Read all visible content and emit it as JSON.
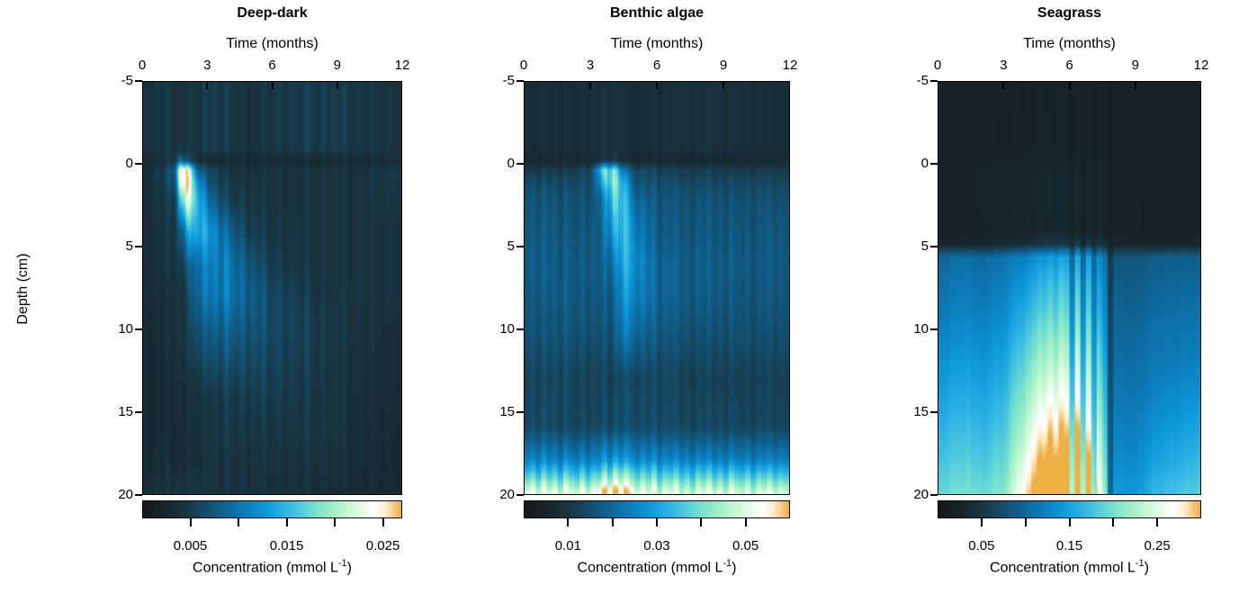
{
  "figure": {
    "ylabel": "Depth (cm)"
  },
  "colormap": [
    [
      0.0,
      "#15181b"
    ],
    [
      0.08,
      "#17242a"
    ],
    [
      0.17,
      "#183744"
    ],
    [
      0.25,
      "#135070"
    ],
    [
      0.33,
      "#0e689b"
    ],
    [
      0.4,
      "#0c7fbd"
    ],
    [
      0.47,
      "#0d97d9"
    ],
    [
      0.53,
      "#25ade2"
    ],
    [
      0.58,
      "#3fc0e2"
    ],
    [
      0.65,
      "#6cdcd2"
    ],
    [
      0.72,
      "#96edc6"
    ],
    [
      0.8,
      "#c8f8d4"
    ],
    [
      0.87,
      "#f2fdf0"
    ],
    [
      0.9,
      "#ffffff"
    ],
    [
      0.94,
      "#ffeccf"
    ],
    [
      1.0,
      "#edb045"
    ]
  ],
  "chart_data": [
    {
      "type": "heatmap",
      "title": "Deep-dark",
      "xlabel": "Time (months)",
      "xlim": [
        0,
        12
      ],
      "ylim": [
        -5,
        20
      ],
      "x_ticks": [
        0,
        3,
        6,
        9,
        12
      ],
      "y_ticks": [
        -5,
        0,
        5,
        10,
        15,
        20
      ],
      "colorbar": {
        "range": [
          0,
          0.027
        ],
        "tick_values": [
          0.005,
          0.01,
          0.015,
          0.02,
          0.025
        ],
        "tick_labels": [
          "0.005",
          "",
          "0.015",
          "",
          "0.025"
        ],
        "label_main": "Concentration (mmol L",
        "label_sup": "-1",
        "label_close": ")"
      },
      "times": [
        0,
        1,
        1.5,
        1.75,
        2,
        2.5,
        3,
        4,
        5,
        6,
        8,
        10,
        12
      ],
      "depths": [
        -5,
        -1,
        -0.3,
        0.3,
        1,
        2,
        4,
        6,
        8,
        10,
        14,
        18,
        20
      ],
      "values": [
        [
          0.004,
          0.0045,
          0.004,
          0.004,
          0.004,
          0.0045,
          0.005,
          0.0045,
          0.004,
          0.0045,
          0.005,
          0.0045,
          0.004
        ],
        [
          0.004,
          0.0045,
          0.004,
          0.004,
          0.004,
          0.0045,
          0.005,
          0.0045,
          0.004,
          0.0045,
          0.005,
          0.0045,
          0.004
        ],
        [
          0.003,
          0.0035,
          0.005,
          0.009,
          0.006,
          0.0035,
          0.003,
          0.003,
          0.003,
          0.003,
          0.003,
          0.003,
          0.0035
        ],
        [
          0.0035,
          0.005,
          0.009,
          0.027,
          0.024,
          0.009,
          0.006,
          0.004,
          0.004,
          0.004,
          0.004,
          0.004,
          0.005
        ],
        [
          0.0035,
          0.005,
          0.008,
          0.026,
          0.025,
          0.013,
          0.007,
          0.0045,
          0.004,
          0.004,
          0.004,
          0.004,
          0.005
        ],
        [
          0.0035,
          0.0045,
          0.006,
          0.018,
          0.022,
          0.016,
          0.009,
          0.005,
          0.0045,
          0.004,
          0.004,
          0.004,
          0.0045
        ],
        [
          0.0035,
          0.004,
          0.005,
          0.008,
          0.012,
          0.015,
          0.013,
          0.008,
          0.005,
          0.0045,
          0.004,
          0.004,
          0.004
        ],
        [
          0.0035,
          0.004,
          0.0045,
          0.005,
          0.007,
          0.01,
          0.011,
          0.01,
          0.007,
          0.005,
          0.004,
          0.004,
          0.004
        ],
        [
          0.0035,
          0.0035,
          0.004,
          0.004,
          0.005,
          0.009,
          0.01,
          0.01,
          0.008,
          0.006,
          0.0045,
          0.004,
          0.004
        ],
        [
          0.003,
          0.0035,
          0.004,
          0.004,
          0.0045,
          0.007,
          0.008,
          0.008,
          0.007,
          0.006,
          0.005,
          0.004,
          0.0035
        ],
        [
          0.003,
          0.003,
          0.0035,
          0.0035,
          0.0035,
          0.004,
          0.0045,
          0.005,
          0.005,
          0.005,
          0.0045,
          0.0035,
          0.0035
        ],
        [
          0.003,
          0.0035,
          0.003,
          0.003,
          0.0035,
          0.0035,
          0.004,
          0.004,
          0.004,
          0.004,
          0.004,
          0.0035,
          0.003
        ],
        [
          0.0035,
          0.004,
          0.0045,
          0.004,
          0.004,
          0.0045,
          0.004,
          0.004,
          0.004,
          0.0035,
          0.0035,
          0.003,
          0.003
        ]
      ],
      "streaks": [
        1,
        0.92,
        1.12,
        0.96,
        1.18,
        0.9,
        1.08,
        0.95,
        1.15,
        1,
        0.92,
        1.1,
        0.96,
        1.06,
        0.9,
        1.18,
        1,
        0.94,
        1.12,
        0.9,
        1.06,
        0.98,
        1.16,
        0.92,
        1,
        1.1,
        0.9,
        1.06,
        1,
        0.94,
        1.2,
        0.98,
        0.9,
        1.12,
        0.95,
        1.06,
        1,
        1.15,
        0.9,
        1.02,
        1.06,
        0.94,
        1.12,
        1,
        0.9,
        1.05,
        0.98,
        0.94
      ]
    },
    {
      "type": "heatmap",
      "title": "Benthic algae",
      "xlabel": "Time (months)",
      "xlim": [
        0,
        12
      ],
      "ylim": [
        -5,
        20
      ],
      "x_ticks": [
        0,
        3,
        6,
        9,
        12
      ],
      "y_ticks": [
        -5,
        0,
        5,
        10,
        15,
        20
      ],
      "colorbar": {
        "range": [
          0,
          0.06
        ],
        "tick_values": [
          0.01,
          0.02,
          0.03,
          0.04,
          0.05
        ],
        "tick_labels": [
          "0.01",
          "",
          "0.03",
          "",
          "0.05"
        ],
        "label_main": "Concentration (mmol L",
        "label_sup": "-1",
        "label_close": ")"
      },
      "times": [
        0,
        1,
        2,
        3,
        3.5,
        4,
        4.5,
        5,
        6,
        8,
        10,
        12
      ],
      "depths": [
        -5,
        -1,
        -0.3,
        0.3,
        1,
        2,
        4,
        6,
        8,
        10,
        13,
        16,
        18,
        19,
        20
      ],
      "values": [
        [
          0.007,
          0.008,
          0.0075,
          0.008,
          0.008,
          0.0085,
          0.008,
          0.0075,
          0.008,
          0.0085,
          0.008,
          0.0075
        ],
        [
          0.007,
          0.008,
          0.0075,
          0.008,
          0.008,
          0.0085,
          0.008,
          0.0075,
          0.008,
          0.0085,
          0.008,
          0.0075
        ],
        [
          0.006,
          0.006,
          0.006,
          0.0065,
          0.009,
          0.01,
          0.007,
          0.006,
          0.006,
          0.006,
          0.006,
          0.006
        ],
        [
          0.01,
          0.011,
          0.011,
          0.013,
          0.034,
          0.042,
          0.022,
          0.014,
          0.012,
          0.011,
          0.011,
          0.011
        ],
        [
          0.013,
          0.014,
          0.013,
          0.014,
          0.028,
          0.044,
          0.03,
          0.016,
          0.014,
          0.013,
          0.013,
          0.013
        ],
        [
          0.015,
          0.016,
          0.015,
          0.015,
          0.02,
          0.038,
          0.034,
          0.02,
          0.016,
          0.015,
          0.015,
          0.015
        ],
        [
          0.016,
          0.017,
          0.016,
          0.016,
          0.018,
          0.03,
          0.034,
          0.025,
          0.017,
          0.016,
          0.016,
          0.016
        ],
        [
          0.017,
          0.018,
          0.017,
          0.017,
          0.017,
          0.022,
          0.032,
          0.027,
          0.019,
          0.017,
          0.017,
          0.017
        ],
        [
          0.016,
          0.017,
          0.017,
          0.016,
          0.016,
          0.018,
          0.028,
          0.025,
          0.019,
          0.017,
          0.016,
          0.016
        ],
        [
          0.015,
          0.016,
          0.016,
          0.015,
          0.015,
          0.016,
          0.024,
          0.021,
          0.017,
          0.015,
          0.015,
          0.015
        ],
        [
          0.012,
          0.013,
          0.013,
          0.012,
          0.012,
          0.012,
          0.014,
          0.013,
          0.013,
          0.012,
          0.012,
          0.012
        ],
        [
          0.013,
          0.014,
          0.013,
          0.013,
          0.013,
          0.014,
          0.015,
          0.014,
          0.014,
          0.013,
          0.013,
          0.013
        ],
        [
          0.024,
          0.025,
          0.024,
          0.024,
          0.025,
          0.028,
          0.028,
          0.026,
          0.025,
          0.024,
          0.024,
          0.024
        ],
        [
          0.036,
          0.037,
          0.036,
          0.036,
          0.038,
          0.044,
          0.043,
          0.039,
          0.037,
          0.036,
          0.036,
          0.036
        ],
        [
          0.05,
          0.051,
          0.05,
          0.05,
          0.054,
          0.06,
          0.058,
          0.052,
          0.05,
          0.049,
          0.049,
          0.049
        ]
      ],
      "streaks": [
        1,
        1.08,
        0.92,
        1.1,
        0.95,
        1.05,
        0.9,
        1.12,
        1,
        0.94,
        1.1,
        0.92,
        1.05,
        1,
        1.15,
        0.9,
        1.08,
        0.95,
        1.1,
        1,
        0.92,
        1.06,
        0.96,
        1.12,
        0.9,
        1.05,
        1,
        1.1,
        0.94,
        1.02,
        0.9,
        1.08,
        1,
        1.12,
        0.95,
        1.05,
        0.92,
        1.1,
        1,
        0.96,
        1.06,
        0.9,
        1.04,
        1,
        1.08,
        0.95,
        1.02,
        0.98
      ]
    },
    {
      "type": "heatmap",
      "title": "Seagrass",
      "xlabel": "Time (months)",
      "xlim": [
        0,
        12
      ],
      "ylim": [
        -5,
        20
      ],
      "x_ticks": [
        0,
        3,
        6,
        9,
        12
      ],
      "y_ticks": [
        -5,
        0,
        5,
        10,
        15,
        20
      ],
      "colorbar": {
        "range": [
          0,
          0.3
        ],
        "tick_values": [
          0.05,
          0.1,
          0.15,
          0.2,
          0.25
        ],
        "tick_labels": [
          "0.05",
          "",
          "0.15",
          "",
          "0.25"
        ],
        "label_main": "Concentration (mmol L",
        "label_sup": "-1",
        "label_close": ")"
      },
      "times": [
        0,
        1,
        2,
        3,
        3.5,
        4,
        5,
        6,
        7,
        7.5,
        8,
        9,
        10,
        12
      ],
      "depths": [
        -5,
        -1,
        0.5,
        2,
        4,
        4.8,
        5.6,
        7,
        9,
        12,
        15,
        18,
        20
      ],
      "values": [
        [
          0.02,
          0.02,
          0.02,
          0.02,
          0.02,
          0.02,
          0.02,
          0.02,
          0.02,
          0.02,
          0.02,
          0.02,
          0.02,
          0.02
        ],
        [
          0.02,
          0.02,
          0.021,
          0.021,
          0.021,
          0.021,
          0.021,
          0.021,
          0.021,
          0.02,
          0.02,
          0.02,
          0.02,
          0.02
        ],
        [
          0.02,
          0.02,
          0.024,
          0.026,
          0.026,
          0.026,
          0.025,
          0.026,
          0.025,
          0.022,
          0.022,
          0.021,
          0.02,
          0.02
        ],
        [
          0.02,
          0.02,
          0.024,
          0.026,
          0.026,
          0.026,
          0.025,
          0.026,
          0.025,
          0.022,
          0.022,
          0.021,
          0.02,
          0.02
        ],
        [
          0.021,
          0.021,
          0.022,
          0.024,
          0.024,
          0.024,
          0.024,
          0.024,
          0.024,
          0.022,
          0.021,
          0.021,
          0.021,
          0.021
        ],
        [
          0.028,
          0.028,
          0.028,
          0.032,
          0.036,
          0.038,
          0.042,
          0.045,
          0.045,
          0.038,
          0.03,
          0.028,
          0.028,
          0.028
        ],
        [
          0.095,
          0.105,
          0.098,
          0.108,
          0.115,
          0.118,
          0.125,
          0.128,
          0.125,
          0.105,
          0.082,
          0.08,
          0.088,
          0.09
        ],
        [
          0.105,
          0.115,
          0.108,
          0.118,
          0.128,
          0.135,
          0.145,
          0.148,
          0.14,
          0.115,
          0.088,
          0.086,
          0.095,
          0.098
        ],
        [
          0.115,
          0.125,
          0.118,
          0.13,
          0.145,
          0.155,
          0.165,
          0.168,
          0.158,
          0.128,
          0.095,
          0.093,
          0.103,
          0.108
        ],
        [
          0.135,
          0.145,
          0.138,
          0.152,
          0.17,
          0.185,
          0.2,
          0.205,
          0.19,
          0.15,
          0.105,
          0.103,
          0.115,
          0.122
        ],
        [
          0.155,
          0.165,
          0.158,
          0.172,
          0.195,
          0.215,
          0.235,
          0.24,
          0.22,
          0.172,
          0.118,
          0.115,
          0.13,
          0.145
        ],
        [
          0.175,
          0.185,
          0.178,
          0.192,
          0.22,
          0.248,
          0.272,
          0.278,
          0.255,
          0.195,
          0.132,
          0.128,
          0.15,
          0.168
        ],
        [
          0.19,
          0.2,
          0.193,
          0.208,
          0.24,
          0.272,
          0.295,
          0.3,
          0.278,
          0.215,
          0.145,
          0.14,
          0.168,
          0.185
        ]
      ],
      "streaks": [
        1,
        0.99,
        1.01,
        1,
        0.99,
        1.02,
        1,
        1.01,
        0.99,
        1,
        1.02,
        0.99,
        1,
        1.03,
        1.04,
        1.02,
        1.06,
        1.1,
        1.15,
        1.12,
        1.18,
        1.1,
        1.2,
        1.15,
        0.78,
        1.22,
        0.8,
        1.18,
        0.82,
        1.2,
        1.1,
        0.62,
        1,
        1.01,
        0.99,
        1,
        1.01,
        0.99,
        1,
        1.01,
        0.99,
        1,
        1.01,
        0.99,
        1,
        1.01,
        0.99,
        1
      ]
    }
  ]
}
